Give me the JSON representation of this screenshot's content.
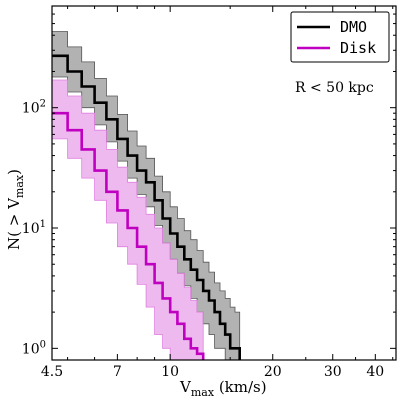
{
  "chart_data": {
    "type": "line",
    "xlabel_main": "V",
    "xlabel_sub": "max",
    "xlabel_unit": " (km/s)",
    "ylabel_main": "N( > V",
    "ylabel_sub": "max",
    "ylabel_close": ")",
    "xscale": "log",
    "yscale": "log",
    "xlim": [
      4.5,
      46
    ],
    "ylim": [
      0.8,
      700
    ],
    "x_ticks": [
      {
        "value": 4.5,
        "label": "4.5"
      },
      {
        "value": 7,
        "label": "7"
      },
      {
        "value": 10,
        "label": "10"
      },
      {
        "value": 20,
        "label": "20"
      },
      {
        "value": 30,
        "label": "30"
      },
      {
        "value": 40,
        "label": "40"
      }
    ],
    "y_ticks": [
      {
        "value": 1,
        "base": "10",
        "exp": "0"
      },
      {
        "value": 10,
        "base": "10",
        "exp": "1"
      },
      {
        "value": 100,
        "base": "10",
        "exp": "2"
      }
    ],
    "annotation": "R < 50 kpc",
    "legend_position": "top-right",
    "series": [
      {
        "name": "DMO",
        "color": "#000000",
        "fill": "#888888",
        "x": [
          4.5,
          5.0,
          5.5,
          6.0,
          6.5,
          7.0,
          7.5,
          8.0,
          8.5,
          9.0,
          9.5,
          10.0,
          10.5,
          11.0,
          11.5,
          12.0,
          12.5,
          13.0,
          13.5,
          14.0,
          14.5,
          15.0,
          15.5,
          16.0
        ],
        "values": [
          270,
          200,
          150,
          110,
          80,
          55,
          40,
          30,
          24,
          17,
          12,
          9,
          7,
          5.5,
          4.5,
          3.7,
          3.0,
          2.5,
          2.0,
          1.6,
          1.3,
          1.0,
          1.0,
          0.8
        ],
        "lower": [
          180,
          135,
          100,
          72,
          52,
          36,
          26,
          19,
          15,
          10.5,
          7.5,
          5.5,
          4.2,
          3.3,
          2.6,
          2.0,
          1.6,
          1.3,
          1.0,
          1.0,
          0.8,
          0.8,
          0.8,
          0.8
        ],
        "upper": [
          430,
          320,
          240,
          175,
          125,
          88,
          64,
          48,
          38,
          27,
          20,
          15,
          12,
          9.5,
          8,
          6.5,
          5.2,
          4.3,
          3.5,
          3.0,
          2.6,
          2.2,
          2.0,
          1.8
        ]
      },
      {
        "name": "Disk",
        "color": "#c000c0",
        "fill": "#e080e0",
        "x": [
          4.5,
          5.0,
          5.5,
          6.0,
          6.5,
          7.0,
          7.5,
          8.0,
          8.5,
          9.0,
          9.5,
          10.0,
          10.5,
          11.0,
          11.5,
          12.0,
          12.5
        ],
        "values": [
          90,
          65,
          45,
          30,
          20,
          14,
          10,
          7,
          5,
          3.5,
          2.6,
          2.0,
          1.6,
          1.2,
          1.0,
          0.9,
          0.8
        ],
        "lower": [
          55,
          38,
          26,
          17,
          11,
          7,
          5,
          3.4,
          2.2,
          1.3,
          1.0,
          0.8,
          0.8,
          0.8,
          0.8,
          0.8,
          0.8
        ],
        "upper": [
          170,
          125,
          90,
          65,
          45,
          32,
          24,
          18,
          13,
          10,
          7.5,
          5.5,
          4.2,
          3.2,
          2.5,
          2.0,
          1.6
        ]
      }
    ]
  }
}
